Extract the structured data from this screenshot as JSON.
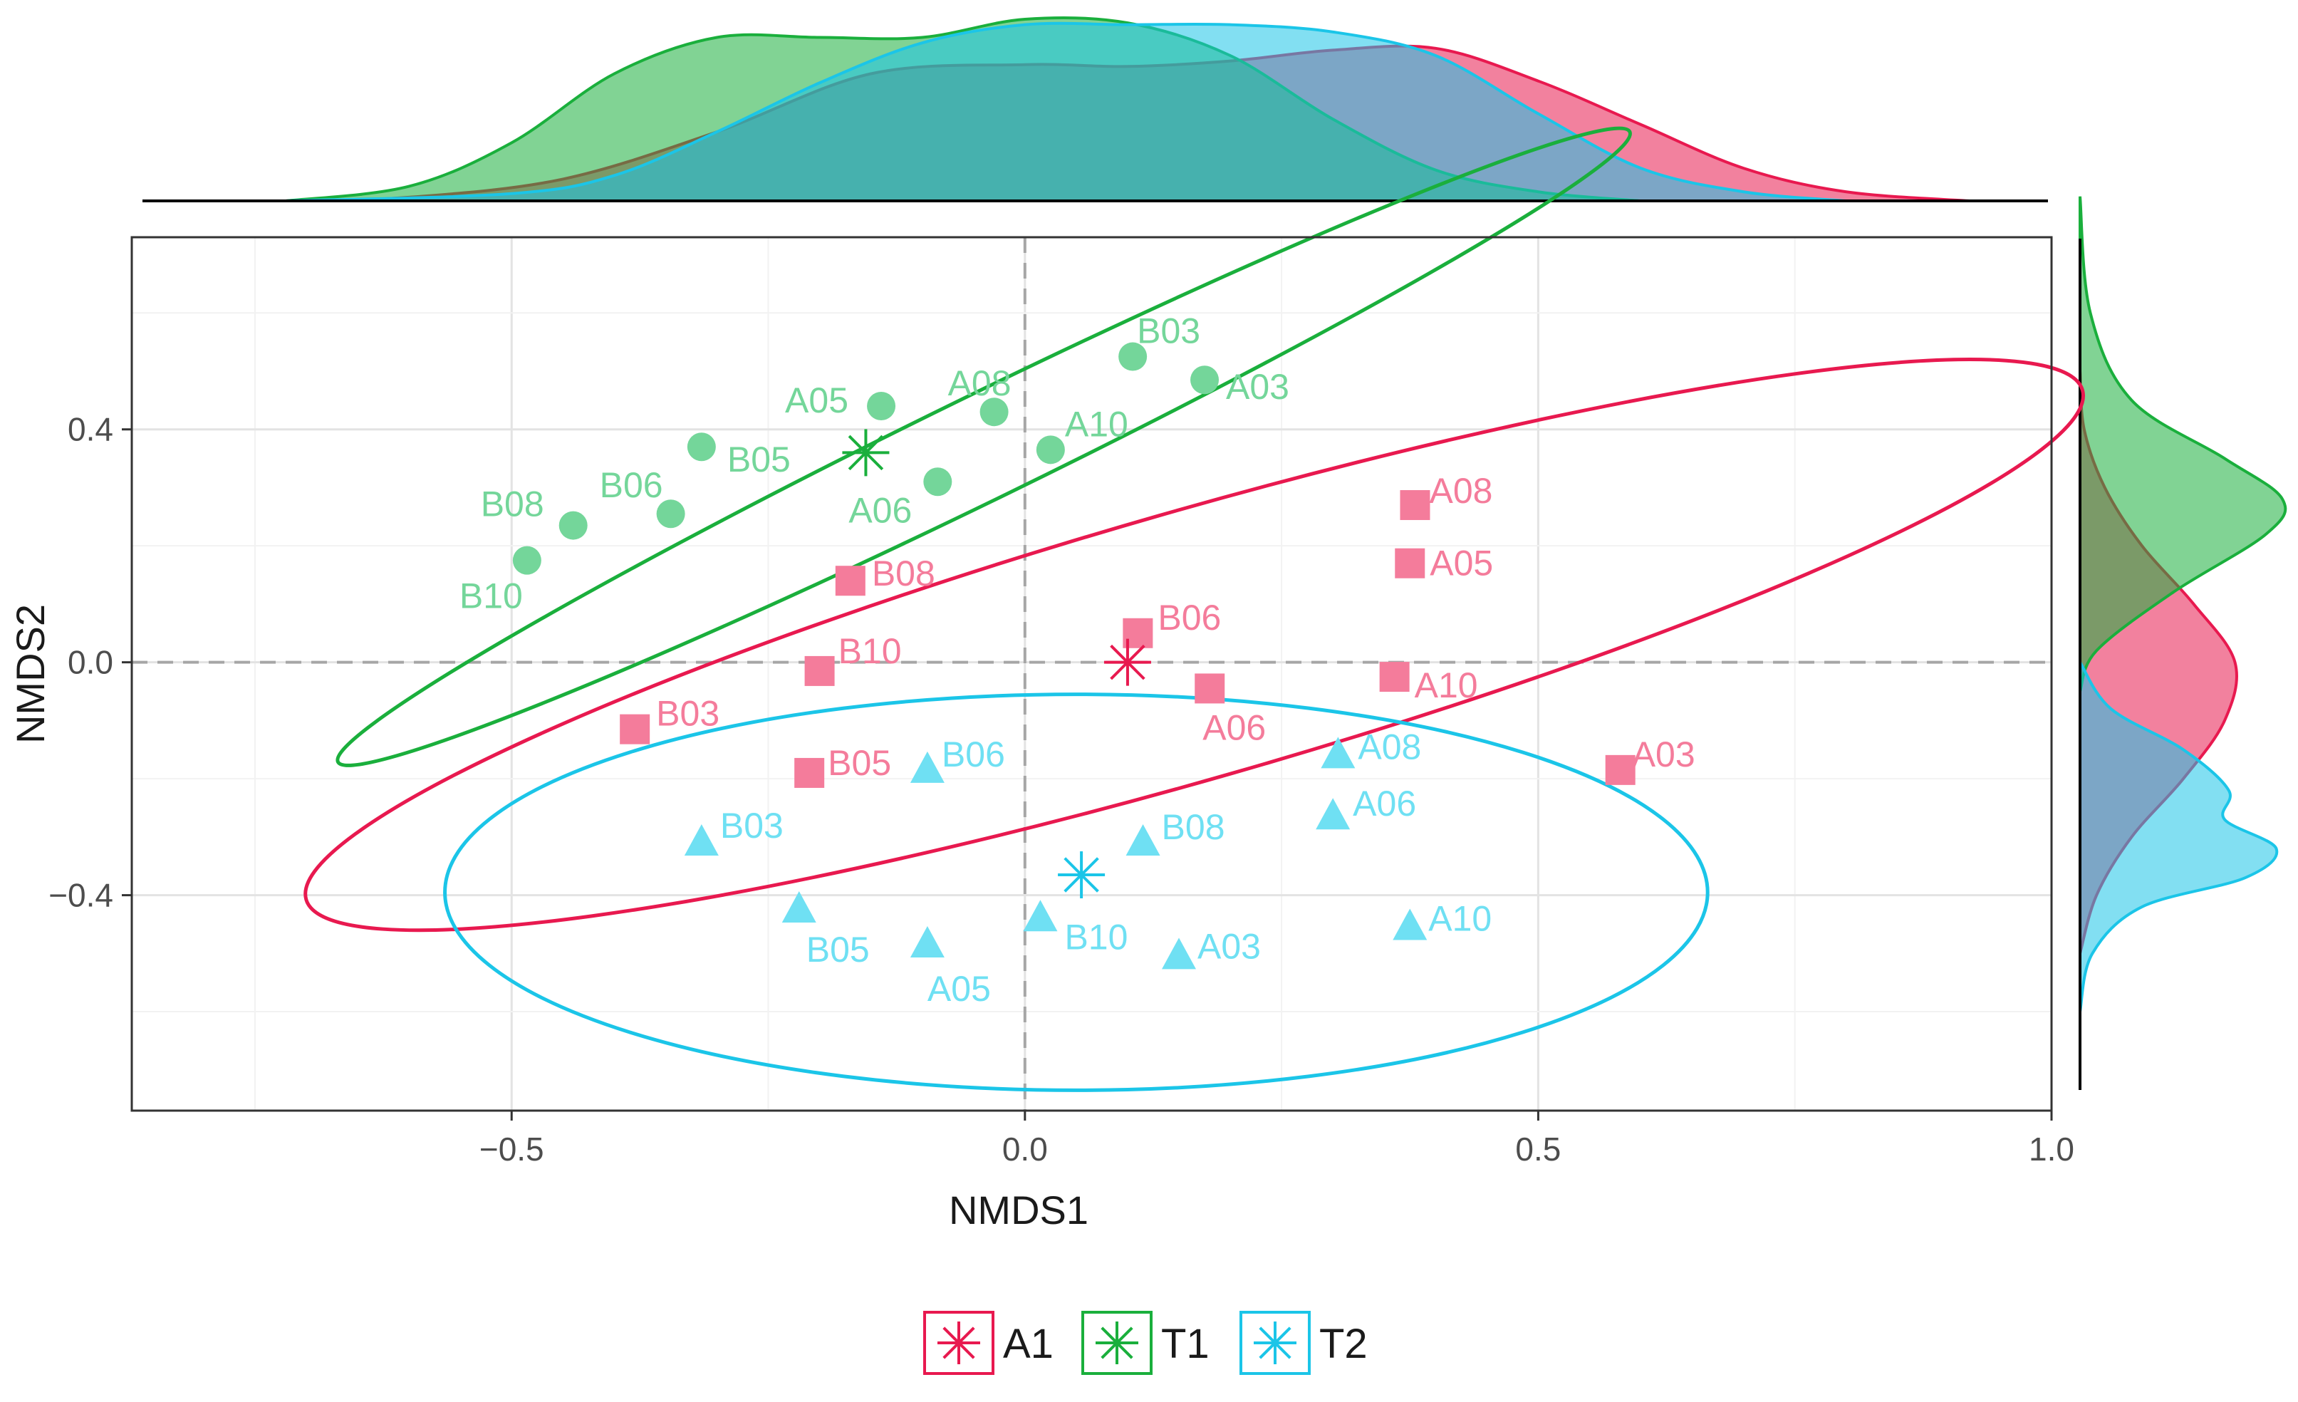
{
  "chart_data": {
    "type": "scatter",
    "xlabel": "NMDS1",
    "ylabel": "NMDS2",
    "xlim": [
      -0.87,
      1.0
    ],
    "ylim": [
      -0.77,
      0.73
    ],
    "x_ticks": [
      -0.5,
      0.0,
      0.5,
      1.0
    ],
    "x_tick_labels": [
      "−0.5",
      "0.0",
      "0.5",
      "1.0"
    ],
    "y_ticks": [
      -0.4,
      0.0,
      0.4
    ],
    "y_tick_labels": [
      "−0.4",
      "0.0",
      "0.4"
    ],
    "grid": true,
    "legend_position": "bottom",
    "groups": [
      {
        "name": "A1",
        "color": "#E8194F",
        "point_color": "#F47C9B",
        "marker": "square",
        "centroid": [
          0.1,
          0.0
        ],
        "ellipse": {
          "cx": 0.165,
          "cy": 0.03,
          "rx": 0.9,
          "ry": 0.23,
          "angle_deg": 16
        },
        "points": [
          {
            "label": "A08",
            "x": 0.38,
            "y": 0.27
          },
          {
            "label": "A05",
            "x": 0.375,
            "y": 0.17
          },
          {
            "label": "A10",
            "x": 0.36,
            "y": -0.025
          },
          {
            "label": "A06",
            "x": 0.18,
            "y": -0.045
          },
          {
            "label": "A03",
            "x": 0.58,
            "y": -0.185
          },
          {
            "label": "B06",
            "x": 0.11,
            "y": 0.05
          },
          {
            "label": "B08",
            "x": -0.17,
            "y": 0.14
          },
          {
            "label": "B10",
            "x": -0.2,
            "y": -0.015
          },
          {
            "label": "B03",
            "x": -0.38,
            "y": -0.115
          },
          {
            "label": "B05",
            "x": -0.21,
            "y": -0.19
          }
        ]
      },
      {
        "name": "T1",
        "color": "#1AAF3C",
        "point_color": "#74D69A",
        "marker": "circle",
        "centroid": [
          -0.155,
          0.36
        ],
        "ellipse": {
          "cx": -0.04,
          "cy": 0.37,
          "rx": 0.7,
          "ry": 0.09,
          "angle_deg": 26
        },
        "points": [
          {
            "label": "B03",
            "x": 0.105,
            "y": 0.525
          },
          {
            "label": "A03",
            "x": 0.175,
            "y": 0.485
          },
          {
            "label": "A08",
            "x": -0.03,
            "y": 0.43
          },
          {
            "label": "A05",
            "x": -0.14,
            "y": 0.44
          },
          {
            "label": "A10",
            "x": 0.025,
            "y": 0.365
          },
          {
            "label": "A06",
            "x": -0.085,
            "y": 0.31
          },
          {
            "label": "B05",
            "x": -0.315,
            "y": 0.37
          },
          {
            "label": "B06",
            "x": -0.345,
            "y": 0.255
          },
          {
            "label": "B08",
            "x": -0.44,
            "y": 0.235
          },
          {
            "label": "B10",
            "x": -0.485,
            "y": 0.175
          }
        ]
      },
      {
        "name": "T2",
        "color": "#1BC5E8",
        "point_color": "#6FE0F3",
        "marker": "triangle",
        "centroid": [
          0.055,
          -0.365
        ],
        "ellipse": {
          "cx": 0.05,
          "cy": -0.395,
          "rx": 0.615,
          "ry": 0.34,
          "angle_deg": 0
        },
        "points": [
          {
            "label": "A08",
            "x": 0.305,
            "y": -0.16
          },
          {
            "label": "A06",
            "x": 0.3,
            "y": -0.265
          },
          {
            "label": "A10",
            "x": 0.375,
            "y": -0.455
          },
          {
            "label": "A03",
            "x": 0.15,
            "y": -0.505
          },
          {
            "label": "A05",
            "x": -0.095,
            "y": -0.485
          },
          {
            "label": "B06",
            "x": -0.095,
            "y": -0.185
          },
          {
            "label": "B08",
            "x": 0.115,
            "y": -0.31
          },
          {
            "label": "B10",
            "x": 0.015,
            "y": -0.44
          },
          {
            "label": "B03",
            "x": -0.315,
            "y": -0.31
          },
          {
            "label": "B05",
            "x": -0.22,
            "y": -0.425
          }
        ]
      }
    ],
    "marginal_density": {
      "x": {
        "grid": [
          -0.72,
          0.92
        ],
        "A1": [
          [
            -0.72,
            0.0
          ],
          [
            -0.6,
            0.02
          ],
          [
            -0.45,
            0.12
          ],
          [
            -0.3,
            0.38
          ],
          [
            -0.15,
            0.7
          ],
          [
            0.0,
            0.75
          ],
          [
            0.1,
            0.74
          ],
          [
            0.2,
            0.77
          ],
          [
            0.3,
            0.83
          ],
          [
            0.4,
            0.84
          ],
          [
            0.5,
            0.66
          ],
          [
            0.6,
            0.42
          ],
          [
            0.7,
            0.18
          ],
          [
            0.8,
            0.05
          ],
          [
            0.92,
            0.0
          ]
        ],
        "T1": [
          [
            -0.72,
            0.0
          ],
          [
            -0.6,
            0.08
          ],
          [
            -0.5,
            0.32
          ],
          [
            -0.4,
            0.7
          ],
          [
            -0.3,
            0.9
          ],
          [
            -0.2,
            0.9
          ],
          [
            -0.1,
            0.9
          ],
          [
            0.0,
            1.0
          ],
          [
            0.1,
            0.98
          ],
          [
            0.2,
            0.8
          ],
          [
            0.3,
            0.45
          ],
          [
            0.4,
            0.17
          ],
          [
            0.5,
            0.05
          ],
          [
            0.6,
            0.0
          ]
        ],
        "T2": [
          [
            -0.72,
            0.0
          ],
          [
            -0.5,
            0.04
          ],
          [
            -0.4,
            0.14
          ],
          [
            -0.3,
            0.38
          ],
          [
            -0.2,
            0.65
          ],
          [
            -0.1,
            0.87
          ],
          [
            0.0,
            0.97
          ],
          [
            0.1,
            0.97
          ],
          [
            0.2,
            0.97
          ],
          [
            0.3,
            0.93
          ],
          [
            0.4,
            0.8
          ],
          [
            0.5,
            0.48
          ],
          [
            0.6,
            0.18
          ],
          [
            0.7,
            0.05
          ],
          [
            0.8,
            0.0
          ]
        ]
      },
      "y": {
        "A1": [
          [
            0.5,
            0.0
          ],
          [
            0.4,
            0.02
          ],
          [
            0.3,
            0.12
          ],
          [
            0.2,
            0.3
          ],
          [
            0.1,
            0.55
          ],
          [
            0.0,
            0.75
          ],
          [
            -0.1,
            0.7
          ],
          [
            -0.2,
            0.5
          ],
          [
            -0.3,
            0.25
          ],
          [
            -0.4,
            0.08
          ],
          [
            -0.5,
            0.0
          ]
        ],
        "T1": [
          [
            0.8,
            0.0
          ],
          [
            0.6,
            0.05
          ],
          [
            0.45,
            0.25
          ],
          [
            0.35,
            0.7
          ],
          [
            0.28,
            0.98
          ],
          [
            0.22,
            0.9
          ],
          [
            0.12,
            0.45
          ],
          [
            0.02,
            0.08
          ],
          [
            -0.05,
            0.0
          ]
        ],
        "T2": [
          [
            0.0,
            0.0
          ],
          [
            -0.08,
            0.15
          ],
          [
            -0.15,
            0.5
          ],
          [
            -0.22,
            0.72
          ],
          [
            -0.27,
            0.7
          ],
          [
            -0.32,
            0.95
          ],
          [
            -0.37,
            0.8
          ],
          [
            -0.42,
            0.3
          ],
          [
            -0.5,
            0.06
          ],
          [
            -0.6,
            0.0
          ]
        ]
      }
    }
  }
}
